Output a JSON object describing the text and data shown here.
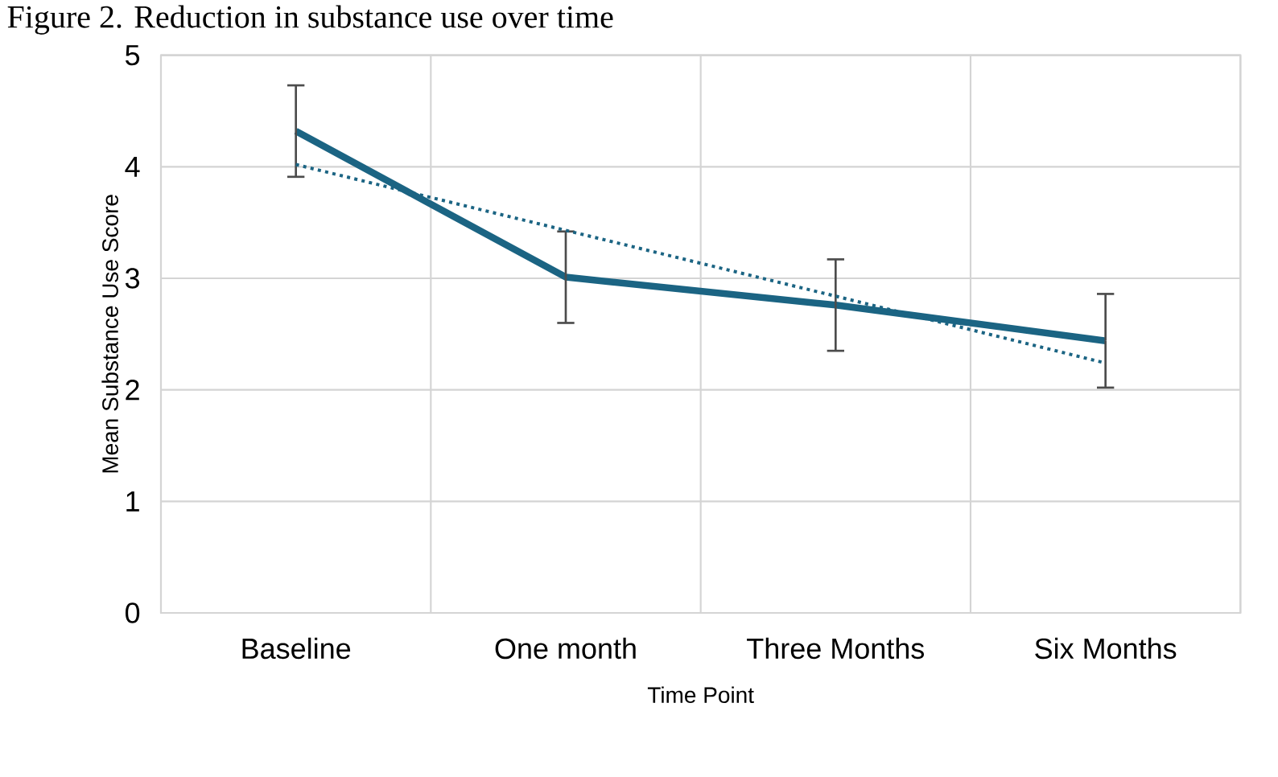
{
  "chart_data": {
    "type": "line",
    "title": "Figure 2. Reduction in substance use over time",
    "xlabel": "Time Point",
    "ylabel": "Mean Substance Use Score",
    "categories": [
      "Baseline",
      "One month",
      "Three Months",
      "Six Months"
    ],
    "series": [
      {
        "color": "#1b6483",
        "values": [
          4.32,
          3.01,
          2.76,
          2.44
        ],
        "errors": [
          0.41,
          0.41,
          0.41,
          0.42
        ],
        "line_style": "solid"
      },
      {
        "color": "#1b6483",
        "values": [
          4.02,
          3.43,
          2.84,
          2.24
        ],
        "line_style": "dotted"
      }
    ],
    "ylim": [
      0,
      5
    ],
    "yticks": [
      0,
      1,
      2,
      3,
      4,
      5
    ],
    "grid": true,
    "marker": "none"
  }
}
